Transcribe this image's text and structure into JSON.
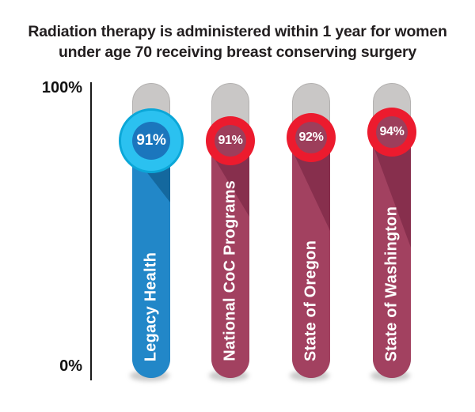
{
  "title": {
    "lines": [
      "Radiation therapy is administered within 1 year for women",
      "under age 70 receiving breast conserving surgery"
    ]
  },
  "y_axis": {
    "max": "100%",
    "min": "0%"
  },
  "chart_data": {
    "type": "bar",
    "title": "Radiation therapy is administered within 1 year for women under age 70 receiving breast conserving surgery",
    "categories": [
      "Legacy Health",
      "National CoC Programs",
      "State of Oregon",
      "State of Washington"
    ],
    "values": [
      91,
      91,
      92,
      94
    ],
    "value_labels": [
      "91%",
      "91%",
      "92%",
      "94%"
    ],
    "xlabel": "",
    "ylabel": "",
    "ylim": [
      0,
      100
    ],
    "grid": false,
    "legend": "none",
    "orientation": "vertical",
    "highlight_index": 0,
    "series_styles": {
      "highlight": {
        "bar": "#2287c8",
        "bar_shadow": "#14689e",
        "ring": "#2bc1f0",
        "ring_border": "#0ba7d8",
        "circle": "#1b76bd"
      },
      "default": {
        "bar": "#a24160",
        "bar_shadow": "#872f4d",
        "ring": "#ec1b2e",
        "circle": "#9d3e5b"
      }
    },
    "track_color": "#c9c7c6",
    "track_border_color": "#b3b1b0",
    "axis_color": "#1a1a1a",
    "background_color": "#ffffff",
    "text_color": "#221e1f",
    "label_text_color": "#ffffff"
  }
}
